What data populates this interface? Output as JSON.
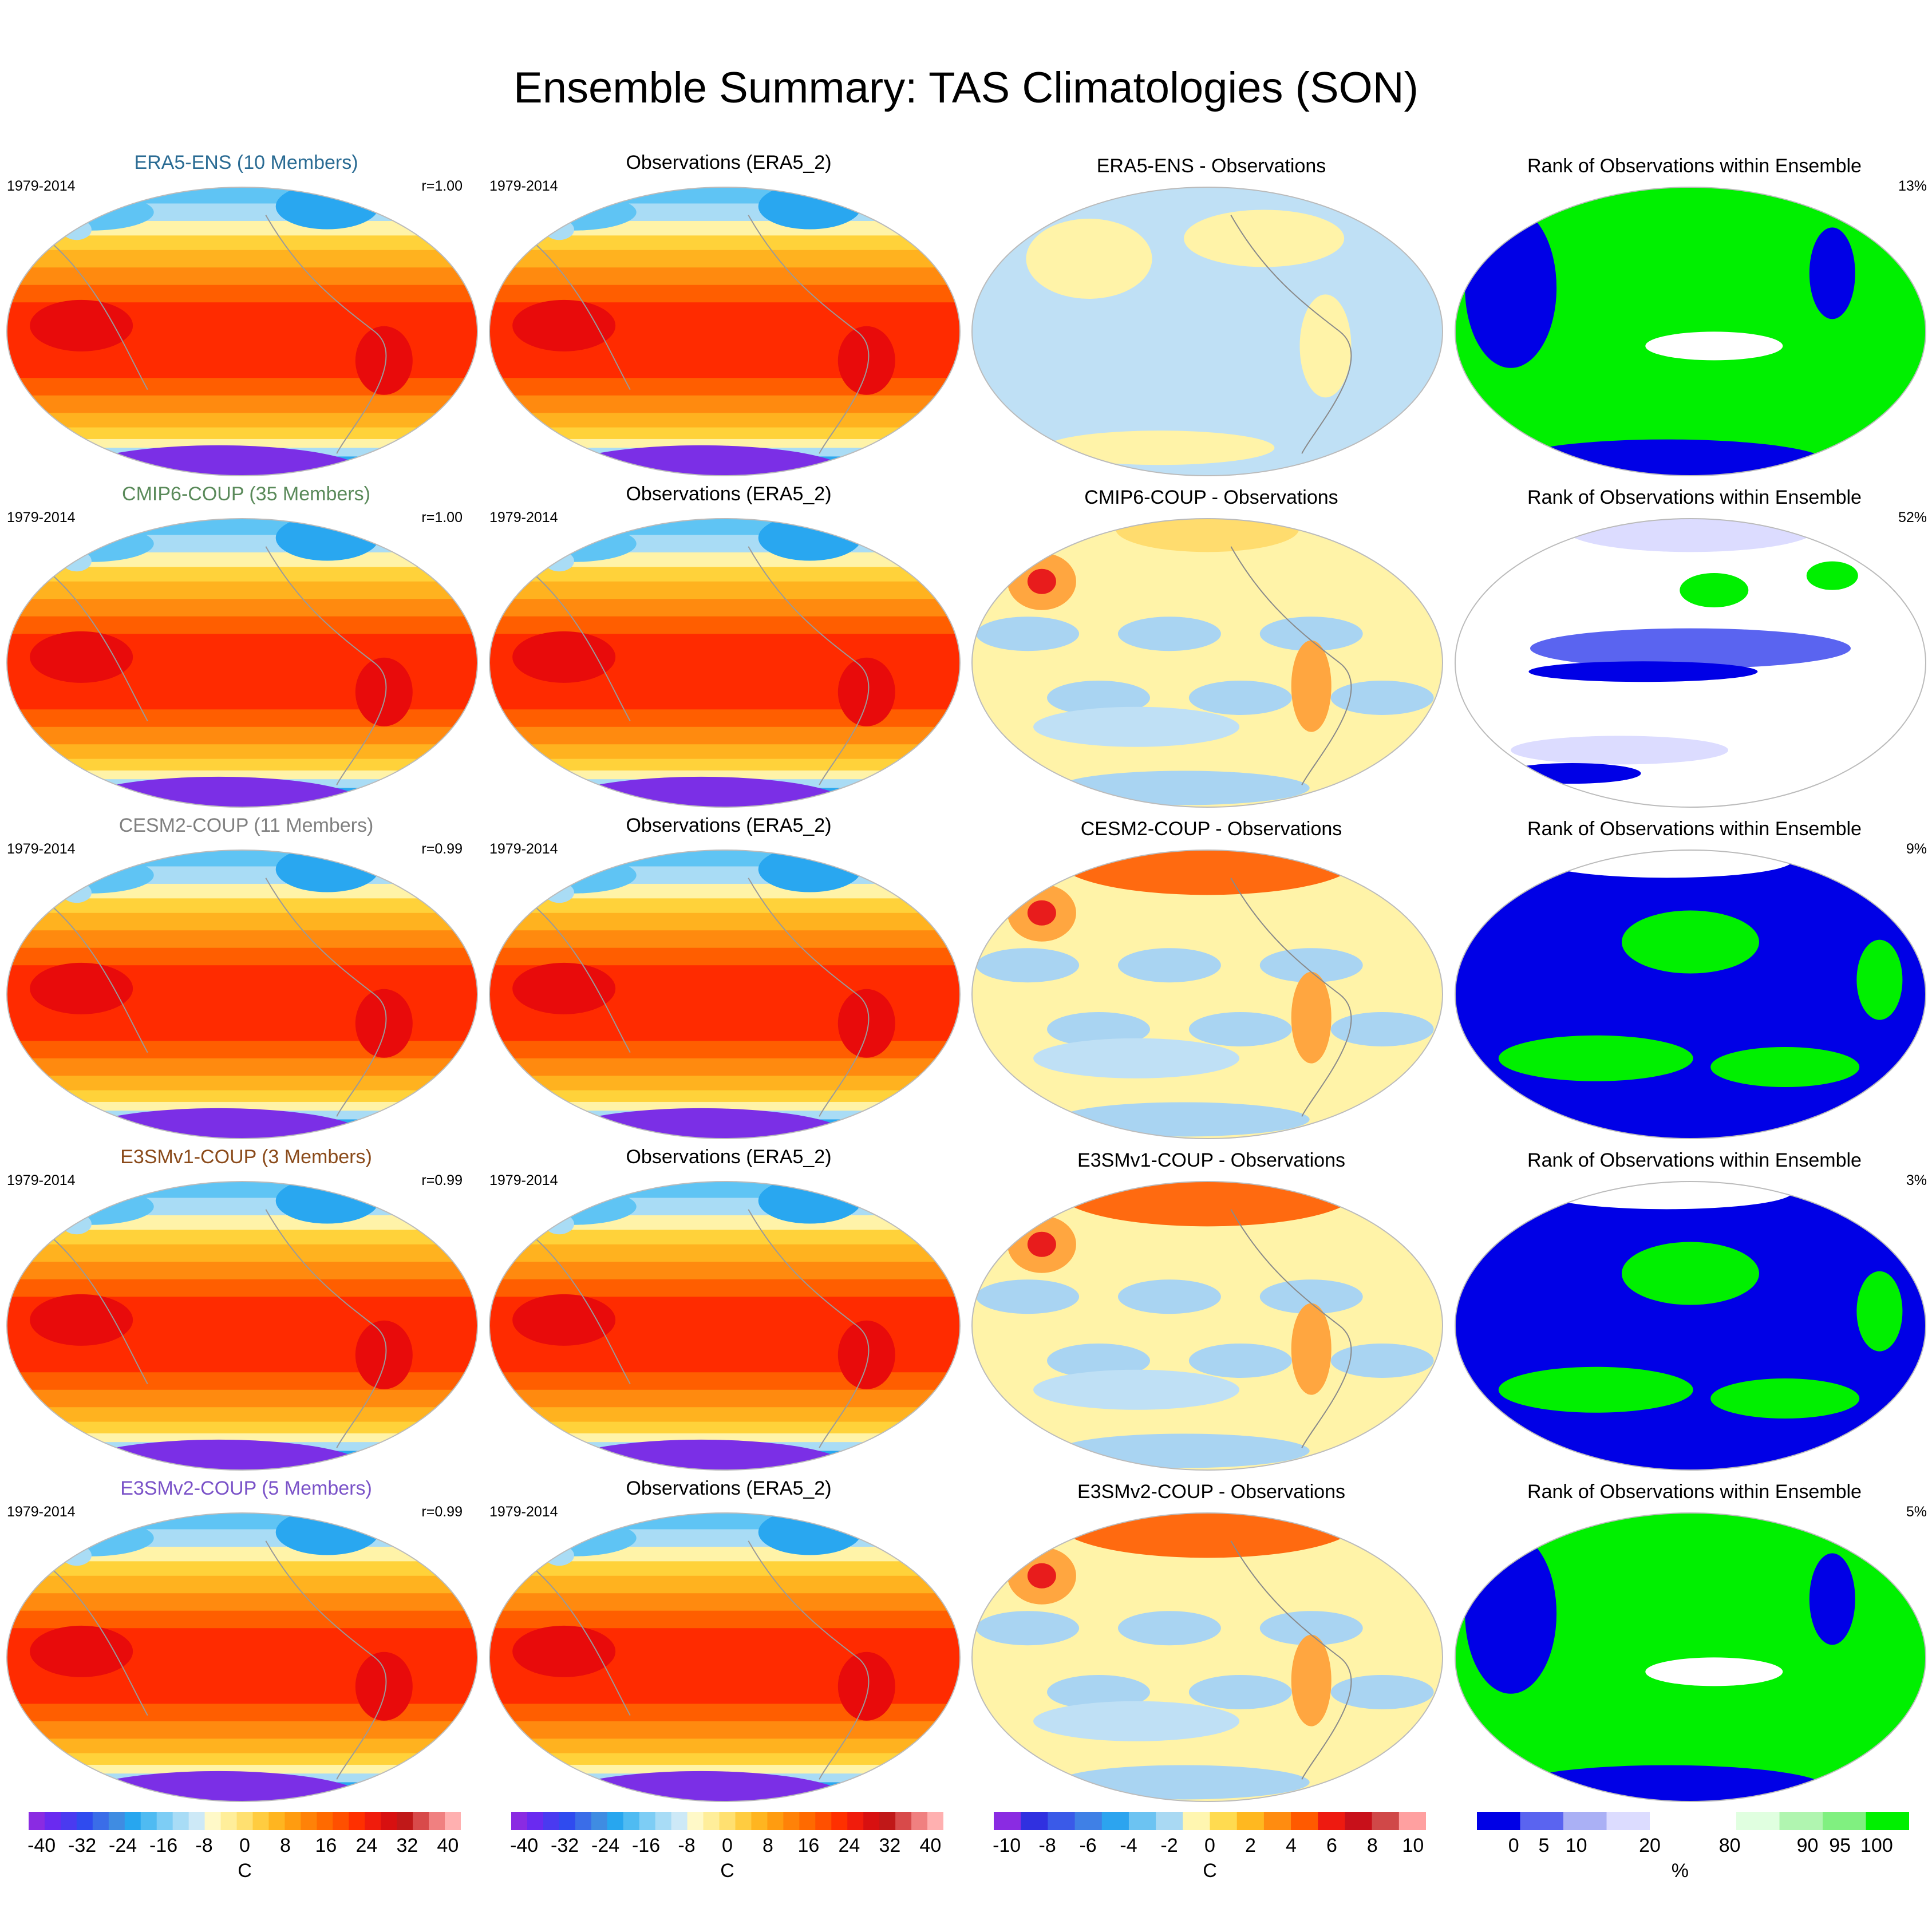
{
  "title": "Ensemble Summary: TAS Climatologies (SON)",
  "colors": {
    "fill_map": [
      "#7b2fe6",
      "#3a3df0",
      "#3f7ee0",
      "#29a7f0",
      "#5fc4f4",
      "#a9dcf5",
      "#fff3a8",
      "#ffd23a",
      "#ffb21f",
      "#ff8a0f",
      "#ff5e00",
      "#ff2b00",
      "#e80b0b"
    ],
    "diff_map": [
      "#bfe0f5",
      "#a9d4f2",
      "#fff3a8",
      "#ffdc6e",
      "#ffa640",
      "#ff6a10",
      "#e81c1c"
    ],
    "rank_map": [
      "#0000e6",
      "#5a64f0",
      "#dcdcff",
      "#ffffff",
      "#00f000"
    ]
  },
  "rows": [
    {
      "model": {
        "label": "ERA5-ENS (10 Members)",
        "color": "#2a6b93",
        "period": "1979-2014",
        "corr": "r=1.00"
      },
      "obs": {
        "label": "Observations (ERA5_2)",
        "period": "1979-2014"
      },
      "diff": {
        "label": "ERA5-ENS - Observations",
        "mode": "near-zero"
      },
      "rank": {
        "label": "Rank of Observations within Ensemble",
        "pct": "13%",
        "mode": "green-dominant"
      }
    },
    {
      "model": {
        "label": "CMIP6-COUP (35 Members)",
        "color": "#5a8a5a",
        "period": "1979-2014",
        "corr": "r=1.00"
      },
      "obs": {
        "label": "Observations (ERA5_2)",
        "period": "1979-2014"
      },
      "diff": {
        "label": "CMIP6-COUP - Observations",
        "mode": "mixed"
      },
      "rank": {
        "label": "Rank of Observations within Ensemble",
        "pct": "52%",
        "mode": "mixed"
      }
    },
    {
      "model": {
        "label": "CESM2-COUP (11 Members)",
        "color": "#808080",
        "period": "1979-2014",
        "corr": "r=0.99"
      },
      "obs": {
        "label": "Observations (ERA5_2)",
        "period": "1979-2014"
      },
      "diff": {
        "label": "CESM2-COUP - Observations",
        "mode": "warm"
      },
      "rank": {
        "label": "Rank of Observations within Ensemble",
        "pct": "9%",
        "mode": "blue-dominant"
      }
    },
    {
      "model": {
        "label": "E3SMv1-COUP (3 Members)",
        "color": "#8a4a1a",
        "period": "1979-2014",
        "corr": "r=0.99"
      },
      "obs": {
        "label": "Observations (ERA5_2)",
        "period": "1979-2014"
      },
      "diff": {
        "label": "E3SMv1-COUP - Observations",
        "mode": "mixed-warm-north"
      },
      "rank": {
        "label": "Rank of Observations within Ensemble",
        "pct": "3%",
        "mode": "blue-dominant"
      }
    },
    {
      "model": {
        "label": "E3SMv2-COUP (5 Members)",
        "color": "#7a52c8",
        "period": "1979-2014",
        "corr": "r=0.99"
      },
      "obs": {
        "label": "Observations (ERA5_2)",
        "period": "1979-2014"
      },
      "diff": {
        "label": "E3SMv2-COUP - Observations",
        "mode": "mixed-warm-north"
      },
      "rank": {
        "label": "Rank of Observations within Ensemble",
        "pct": "5%",
        "mode": "green-dominant"
      }
    }
  ],
  "colorbars": [
    {
      "name": "temperature-colorbar-1",
      "colors": [
        "#8a2be2",
        "#6a2af0",
        "#4a3af0",
        "#2f4bef",
        "#3a6de8",
        "#3f8ce2",
        "#27a6ef",
        "#4fbbf2",
        "#7dcdf5",
        "#a8dcf6",
        "#cde9f7",
        "#fff9c8",
        "#ffee9a",
        "#ffe070",
        "#ffcc40",
        "#ffb520",
        "#ff9c10",
        "#ff8208",
        "#ff6a00",
        "#ff5000",
        "#ff3000",
        "#f01c0c",
        "#d81010",
        "#c01818",
        "#d84a4a",
        "#f08080",
        "#ffb0b0"
      ],
      "labels": [
        "-40",
        "-32",
        "-24",
        "-16",
        "-8",
        "0",
        "8",
        "16",
        "24",
        "32",
        "40"
      ],
      "unit": "C"
    },
    {
      "name": "temperature-colorbar-2",
      "colors": [
        "#8a2be2",
        "#6a2af0",
        "#4a3af0",
        "#2f4bef",
        "#3a6de8",
        "#3f8ce2",
        "#27a6ef",
        "#4fbbf2",
        "#7dcdf5",
        "#a8dcf6",
        "#cde9f7",
        "#fff9c8",
        "#ffee9a",
        "#ffe070",
        "#ffcc40",
        "#ffb520",
        "#ff9c10",
        "#ff8208",
        "#ff6a00",
        "#ff5000",
        "#ff3000",
        "#f01c0c",
        "#d81010",
        "#c01818",
        "#d84a4a",
        "#f08080",
        "#ffb0b0"
      ],
      "labels": [
        "-40",
        "-32",
        "-24",
        "-16",
        "-8",
        "0",
        "8",
        "16",
        "24",
        "32",
        "40"
      ],
      "unit": "C"
    },
    {
      "name": "difference-colorbar",
      "colors": [
        "#8a2be2",
        "#3030e0",
        "#3a5ae8",
        "#3f80e6",
        "#2ca4ef",
        "#6cc3f2",
        "#a9d9f3",
        "#fff6b0",
        "#ffdb50",
        "#ffb820",
        "#ff8c10",
        "#ff5a00",
        "#ee1a10",
        "#c8101a",
        "#d04848",
        "#ffa0a0"
      ],
      "labels": [
        "-10",
        "-8",
        "-6",
        "-4",
        "-2",
        "0",
        "2",
        "4",
        "6",
        "8",
        "10"
      ],
      "unit": "C"
    },
    {
      "name": "rank-colorbar",
      "colors": [
        "#0000e6",
        "#5a64f0",
        "#aab0f5",
        "#dcdcff",
        "#ffffff",
        "#ffffff",
        "#e0ffe0",
        "#b0f5b0",
        "#80f080",
        "#00f000"
      ],
      "labels": [
        "0",
        "5",
        "10",
        "20",
        "80",
        "90",
        "95",
        "100"
      ],
      "unit": "%"
    }
  ]
}
